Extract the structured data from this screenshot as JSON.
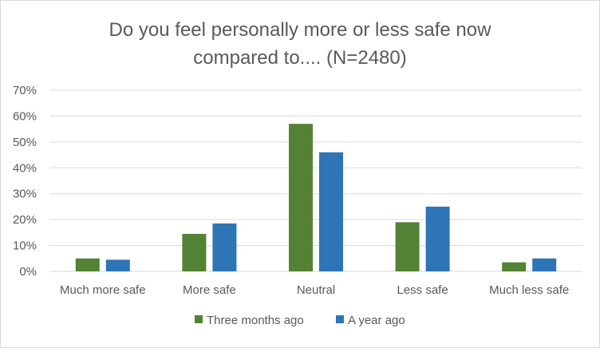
{
  "chart_data": {
    "type": "bar",
    "title_lines": [
      "Do you feel personally more or less safe now",
      "compared to.... (N=2480)"
    ],
    "categories": [
      "Much more safe",
      "More safe",
      "Neutral",
      "Less safe",
      "Much less safe"
    ],
    "series": [
      {
        "name": "Three months ago",
        "color": "#548235",
        "values": [
          5,
          14.5,
          57,
          19,
          3.5
        ]
      },
      {
        "name": "A year ago",
        "color": "#2e75b6",
        "values": [
          4.5,
          18.5,
          46,
          25,
          5
        ]
      }
    ],
    "ylim": [
      0,
      70
    ],
    "yticks": [
      0,
      10,
      20,
      30,
      40,
      50,
      60,
      70
    ],
    "ytick_labels": [
      "0%",
      "10%",
      "20%",
      "30%",
      "40%",
      "50%",
      "60%",
      "70%"
    ],
    "grid": true,
    "legend_position": "bottom"
  }
}
